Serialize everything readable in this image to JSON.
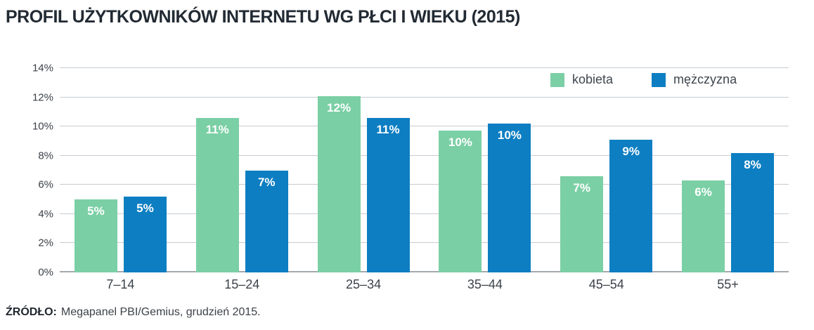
{
  "title": "PROFIL UŻYTKOWNIKÓW INTERNETU WG PŁCI I WIEKU (2015)",
  "source": {
    "label": "ŹRÓDŁO:",
    "text": "Megapanel PBI/Gemius, grudzień 2015."
  },
  "colors": {
    "kobieta": "#7bcfa5",
    "mezczyzna": "#0d7ec2",
    "title_text": "#222a33",
    "axis_text": "#3b4249",
    "gridline": "#c7ccd1",
    "baseline": "#a4a9ae",
    "bar_label_text": "#ffffff"
  },
  "chart_data": {
    "type": "bar",
    "title": "PROFIL UŻYTKOWNIKÓW INTERNETU WG PŁCI I WIEKU (2015)",
    "categories": [
      "7–14",
      "15–24",
      "25–34",
      "35–44",
      "45–54",
      "55+"
    ],
    "series": [
      {
        "name": "kobieta",
        "color": "#7bcfa5",
        "values": [
          5,
          11,
          12,
          10,
          7,
          6
        ],
        "labels": [
          "5%",
          "11%",
          "12%",
          "10%",
          "7%",
          "6%"
        ],
        "bar_heights_pct": [
          5.0,
          10.6,
          12.1,
          9.7,
          6.6,
          6.3
        ]
      },
      {
        "name": "mężczyzna",
        "color": "#0d7ec2",
        "values": [
          5,
          7,
          11,
          10,
          9,
          8
        ],
        "labels": [
          "5%",
          "7%",
          "11%",
          "10%",
          "9%",
          "8%"
        ],
        "bar_heights_pct": [
          5.2,
          7.0,
          10.6,
          10.2,
          9.1,
          8.2
        ]
      }
    ],
    "xlabel": "",
    "ylabel": "",
    "ylim": [
      0,
      14
    ],
    "ytick_step": 2,
    "ytick_format": "{v}%",
    "ytick_labels": [
      "0%",
      "2%",
      "4%",
      "6%",
      "8%",
      "10%",
      "12%",
      "14%"
    ],
    "grid": true,
    "legend_position": "top-right",
    "bar_labels_inside_top": true
  }
}
